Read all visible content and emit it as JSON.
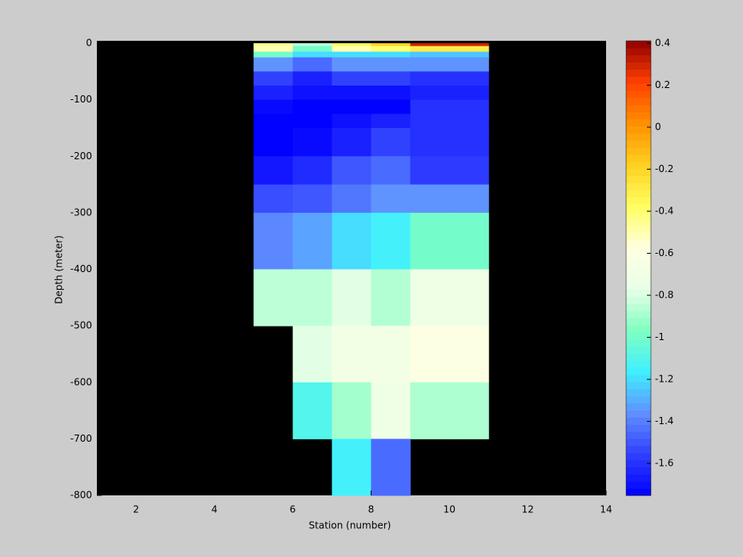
{
  "chart_data": {
    "type": "heatmap",
    "xlabel": "Station (number)",
    "ylabel": "Depth (meter)",
    "x_edges": [
      5,
      6,
      7,
      8,
      9,
      10,
      11
    ],
    "y_edges": [
      0,
      -5,
      -15,
      -25,
      -50,
      -75,
      -100,
      -125,
      -150,
      -200,
      -250,
      -300,
      -400,
      -500,
      -600,
      -700,
      -800
    ],
    "z": [
      [
        -0.45,
        -0.85,
        -0.35,
        -0.2,
        0.3,
        0.3
      ],
      [
        -0.5,
        -1.0,
        -0.5,
        -0.4,
        -0.3,
        -0.3
      ],
      [
        -1.0,
        -1.2,
        -1.2,
        -1.2,
        -1.25,
        -1.25
      ],
      [
        -1.35,
        -1.45,
        -1.35,
        -1.35,
        -1.35,
        -1.35
      ],
      [
        -1.55,
        -1.65,
        -1.55,
        -1.55,
        -1.6,
        -1.6
      ],
      [
        -1.65,
        -1.7,
        -1.7,
        -1.7,
        -1.65,
        -1.65
      ],
      [
        -1.72,
        -1.75,
        -1.75,
        -1.75,
        -1.6,
        -1.6
      ],
      [
        -1.75,
        -1.75,
        -1.7,
        -1.65,
        -1.6,
        -1.6
      ],
      [
        -1.75,
        -1.72,
        -1.65,
        -1.55,
        -1.6,
        -1.6
      ],
      [
        -1.68,
        -1.62,
        -1.5,
        -1.45,
        -1.57,
        -1.57
      ],
      [
        -1.52,
        -1.5,
        -1.42,
        -1.35,
        -1.35,
        -1.35
      ],
      [
        -1.38,
        -1.32,
        -1.2,
        -1.15,
        -1.0,
        -1.0
      ],
      [
        -0.85,
        -0.85,
        -0.78,
        -0.87,
        -0.72,
        -0.72
      ],
      [
        null,
        -0.78,
        -0.68,
        -0.68,
        -0.6,
        -0.6
      ],
      [
        null,
        -1.1,
        -0.9,
        -0.72,
        -0.88,
        -0.88
      ],
      [
        null,
        null,
        -1.15,
        -1.45,
        null,
        null
      ]
    ],
    "xlim": [
      1,
      14
    ],
    "xticks": [
      2,
      4,
      6,
      8,
      10,
      12,
      14
    ],
    "ylim": [
      -800,
      0
    ],
    "yticks": [
      0,
      -100,
      -200,
      -300,
      -400,
      -500,
      -600,
      -700,
      -800
    ],
    "clim": [
      -1.752,
      0.411
    ],
    "cticks": [
      0.4,
      0.2,
      0,
      -0.2,
      -0.4,
      -0.6,
      -0.8,
      -1,
      -1.2,
      -1.4,
      -1.6
    ],
    "colormap": [
      "#0000ff",
      "#3040ff",
      "#6090ff",
      "#40f0ff",
      "#80ffc0",
      "#e8ffe8",
      "#ffffe0",
      "#ffff60",
      "#ffd020",
      "#ff9000",
      "#ff4000",
      "#900000"
    ],
    "missing_color": "#000000"
  }
}
